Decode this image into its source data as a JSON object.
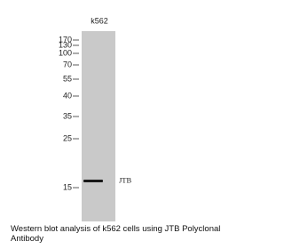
{
  "lane_label": "k562",
  "markers": [
    170,
    130,
    100,
    70,
    55,
    40,
    35,
    25,
    15
  ],
  "band_label": "JTB",
  "caption": "Western blot analysis of k562 cells using JTB Polyclonal Antibody"
}
